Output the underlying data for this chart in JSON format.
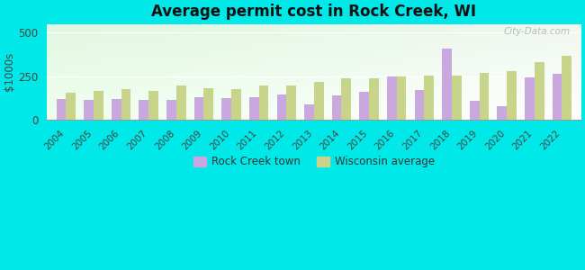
{
  "title": "Average permit cost in Rock Creek, WI",
  "ylabel": "$1000s",
  "background_outer": "#00e8e8",
  "years": [
    2004,
    2005,
    2006,
    2007,
    2008,
    2009,
    2010,
    2011,
    2012,
    2013,
    2014,
    2015,
    2016,
    2017,
    2018,
    2019,
    2020,
    2021,
    2022
  ],
  "rock_creek": [
    120,
    115,
    120,
    115,
    115,
    130,
    125,
    130,
    145,
    90,
    140,
    160,
    250,
    170,
    410,
    110,
    80,
    245,
    265
  ],
  "wisconsin": [
    155,
    165,
    175,
    165,
    195,
    180,
    175,
    195,
    195,
    215,
    240,
    240,
    250,
    255,
    255,
    270,
    280,
    330,
    365
  ],
  "rock_creek_color": "#c9a8e0",
  "wisconsin_color": "#c8d48a",
  "ylim": [
    0,
    550
  ],
  "yticks": [
    0,
    250,
    500
  ],
  "legend_rock_creek": "Rock Creek town",
  "legend_wisconsin": "Wisconsin average",
  "watermark": "City-Data.com"
}
